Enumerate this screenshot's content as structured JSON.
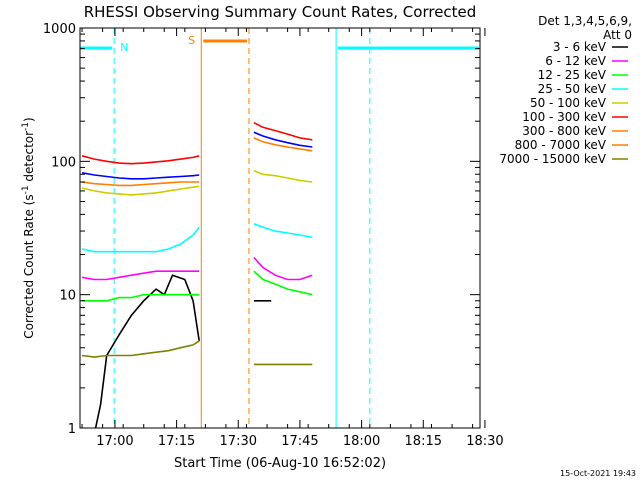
{
  "chart_data": {
    "type": "line",
    "title": "RHESSI Observing Summary Count Rates, Corrected",
    "xlabel": "Start Time (06-Aug-10 16:52:02)",
    "ylabel_main": "Corrected Count Rate (s",
    "ylabel_sup1": "-1",
    "ylabel_mid": " detector",
    "ylabel_sup2": "-1",
    "ylabel_end": ")",
    "y_scale": "log",
    "ylim": [
      1,
      1000
    ],
    "xlim_min": [
      -0.5,
      96.8
    ],
    "x_ticks": [
      {
        "m": 8,
        "label": "17:00"
      },
      {
        "m": 23,
        "label": "17:15"
      },
      {
        "m": 38,
        "label": "17:30"
      },
      {
        "m": 53,
        "label": "17:45"
      },
      {
        "m": 68,
        "label": "18:00"
      },
      {
        "m": 83,
        "label": "18:15"
      },
      {
        "m": 98,
        "label": "18:30"
      }
    ],
    "y_ticks": [
      {
        "v": 1,
        "label": "1"
      },
      {
        "v": 10,
        "label": "10"
      },
      {
        "v": 100,
        "label": "100"
      },
      {
        "v": 1000,
        "label": "1000"
      }
    ],
    "legend_title": [
      "Det 1,3,4,5,6,9,",
      "Att 0"
    ],
    "legend_position": "top-right",
    "footer_date": "15-Oct-2021 19:43",
    "markers": [
      {
        "label": "N",
        "color": "#00ffff"
      },
      {
        "label": "S",
        "color": "#ff7f00"
      }
    ],
    "series": [
      {
        "name": "3 - 6 keV",
        "color": "#000000",
        "segments": [
          [
            [
              3.3,
              1
            ],
            [
              4.5,
              1.5
            ],
            [
              6,
              3.5
            ],
            [
              9,
              5
            ],
            [
              12,
              7
            ],
            [
              15,
              9
            ],
            [
              18,
              11
            ],
            [
              20,
              10
            ],
            [
              22,
              14
            ],
            [
              25,
              13
            ],
            [
              27,
              9
            ],
            [
              28.5,
              4.5
            ]
          ],
          [
            [
              41.8,
              9
            ],
            [
              46,
              9
            ]
          ]
        ]
      },
      {
        "name": "6 - 12 keV",
        "color": "#ff00ff",
        "segments": [
          [
            [
              0,
              13.5
            ],
            [
              3,
              13
            ],
            [
              6,
              13
            ],
            [
              9,
              13.5
            ],
            [
              12,
              14
            ],
            [
              15,
              14.5
            ],
            [
              18,
              15
            ],
            [
              21,
              15
            ],
            [
              24,
              15
            ],
            [
              27,
              15
            ],
            [
              28.5,
              15
            ]
          ],
          [
            [
              41.8,
              19
            ],
            [
              44,
              16
            ],
            [
              47,
              14
            ],
            [
              50,
              13
            ],
            [
              53,
              13
            ],
            [
              56,
              14
            ]
          ]
        ]
      },
      {
        "name": "12 - 25 keV",
        "color": "#00ff00",
        "segments": [
          [
            [
              0,
              9
            ],
            [
              3,
              9
            ],
            [
              6,
              9
            ],
            [
              9,
              9.5
            ],
            [
              12,
              9.5
            ],
            [
              15,
              10
            ],
            [
              18,
              10
            ],
            [
              21,
              10
            ],
            [
              24,
              10
            ],
            [
              27,
              10
            ],
            [
              28.5,
              10
            ]
          ],
          [
            [
              41.8,
              15
            ],
            [
              44,
              13
            ],
            [
              47,
              12
            ],
            [
              50,
              11
            ],
            [
              53,
              10.5
            ],
            [
              56,
              10
            ]
          ]
        ]
      },
      {
        "name": "25 - 50 keV",
        "color": "#00ffff",
        "segments": [
          [
            [
              0,
              22
            ],
            [
              3,
              21
            ],
            [
              6,
              21
            ],
            [
              9,
              21
            ],
            [
              12,
              21
            ],
            [
              15,
              21
            ],
            [
              18,
              21
            ],
            [
              21,
              22
            ],
            [
              24,
              24
            ],
            [
              27,
              28
            ],
            [
              28.5,
              32
            ]
          ],
          [
            [
              41.8,
              34
            ],
            [
              44,
              32
            ],
            [
              47,
              30
            ],
            [
              50,
              29
            ],
            [
              53,
              28
            ],
            [
              56,
              27
            ]
          ]
        ]
      },
      {
        "name": "50 - 100 keV",
        "color": "#cccc00",
        "segments": [
          [
            [
              0,
              63
            ],
            [
              3,
              60
            ],
            [
              6,
              58
            ],
            [
              9,
              57
            ],
            [
              12,
              56
            ],
            [
              15,
              57
            ],
            [
              18,
              58
            ],
            [
              21,
              60
            ],
            [
              24,
              62
            ],
            [
              27,
              64
            ],
            [
              28.5,
              65
            ]
          ],
          [
            [
              41.8,
              85
            ],
            [
              44,
              80
            ],
            [
              47,
              78
            ],
            [
              50,
              75
            ],
            [
              53,
              72
            ],
            [
              56,
              70
            ]
          ]
        ]
      },
      {
        "name": "100 - 300 keV",
        "color": "#ff0000",
        "segments": [
          [
            [
              0,
              110
            ],
            [
              3,
              104
            ],
            [
              6,
              100
            ],
            [
              9,
              97
            ],
            [
              12,
              96
            ],
            [
              15,
              97
            ],
            [
              18,
              99
            ],
            [
              21,
              101
            ],
            [
              24,
              104
            ],
            [
              27,
              107
            ],
            [
              28.5,
              110
            ]
          ],
          [
            [
              41.8,
              195
            ],
            [
              44,
              180
            ],
            [
              47,
              170
            ],
            [
              50,
              160
            ],
            [
              53,
              150
            ],
            [
              56,
              145
            ]
          ]
        ]
      },
      {
        "name": "300 - 800 keV",
        "color": "#ff7f00",
        "segments": [
          [
            [
              0,
              70
            ],
            [
              3,
              68
            ],
            [
              6,
              67
            ],
            [
              9,
              66
            ],
            [
              12,
              66
            ],
            [
              15,
              67
            ],
            [
              18,
              68
            ],
            [
              21,
              69
            ],
            [
              24,
              70
            ],
            [
              27,
              70
            ],
            [
              28.5,
              70
            ]
          ],
          [
            [
              41.8,
              150
            ],
            [
              44,
              140
            ],
            [
              47,
              133
            ],
            [
              50,
              128
            ],
            [
              53,
              124
            ],
            [
              56,
              120
            ]
          ]
        ]
      },
      {
        "name": "800 - 7000 keV",
        "color": "#ff7f00",
        "segments": [],
        "short": true
      },
      {
        "name": "7000 - 15000 keV",
        "color": "#808000",
        "segments": [
          [
            [
              0,
              3.5
            ],
            [
              3,
              3.4
            ],
            [
              6,
              3.5
            ],
            [
              9,
              3.5
            ],
            [
              12,
              3.5
            ],
            [
              15,
              3.6
            ],
            [
              18,
              3.7
            ],
            [
              21,
              3.8
            ],
            [
              24,
              4
            ],
            [
              27,
              4.2
            ],
            [
              28.5,
              4.5
            ]
          ],
          [
            [
              41.8,
              3
            ],
            [
              44,
              3
            ],
            [
              47,
              3
            ],
            [
              50,
              3
            ],
            [
              53,
              3
            ],
            [
              56,
              3
            ]
          ]
        ]
      }
    ],
    "blue_overlay": {
      "segments": [
        [
          [
            0,
            82
          ],
          [
            3,
            79
          ],
          [
            6,
            77
          ],
          [
            9,
            75
          ],
          [
            12,
            74
          ],
          [
            15,
            74
          ],
          [
            18,
            75
          ],
          [
            21,
            76
          ],
          [
            24,
            77
          ],
          [
            27,
            78
          ],
          [
            28.5,
            79
          ]
        ],
        [
          [
            41.8,
            165
          ],
          [
            44,
            155
          ],
          [
            47,
            145
          ],
          [
            50,
            138
          ],
          [
            53,
            132
          ],
          [
            56,
            128
          ]
        ]
      ]
    }
  }
}
